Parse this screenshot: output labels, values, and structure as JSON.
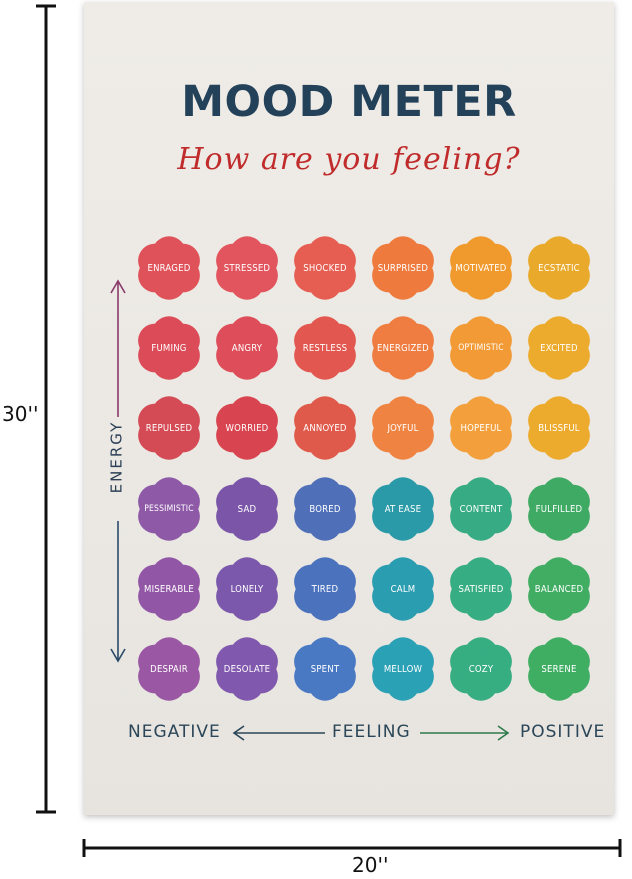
{
  "poster": {
    "title": "MOOD METER",
    "subtitle": "How are you feeling?"
  },
  "axes": {
    "energy_label": "ENERGY",
    "negative_label": "NEGATIVE",
    "feeling_label": "FEELING",
    "positive_label": "POSITIVE"
  },
  "dimensions": {
    "height_label": "30''",
    "width_label": "20''"
  },
  "grid": {
    "rows": [
      {
        "words": [
          "ENRAGED",
          "STRESSED",
          "SHOCKED",
          "SURPRISED",
          "MOTIVATED",
          "ECSTATIC"
        ],
        "colors": [
          "#e0525a",
          "#e2555e",
          "#e65e52",
          "#ee7a3e",
          "#f09a2e",
          "#e9a92a"
        ]
      },
      {
        "words": [
          "FUMING",
          "ANGRY",
          "RESTLESS",
          "ENERGIZED",
          "OPTIMISTIC",
          "EXCITED"
        ],
        "colors": [
          "#dc4c58",
          "#de4e5a",
          "#e2574f",
          "#ef7c40",
          "#f29a35",
          "#ecab2c"
        ]
      },
      {
        "words": [
          "REPULSED",
          "WORRIED",
          "ANNOYED",
          "JOYFUL",
          "HOPEFUL",
          "BLISSFUL"
        ],
        "colors": [
          "#d44a55",
          "#d8444f",
          "#e05a4c",
          "#ef8442",
          "#f3a03c",
          "#edab2e"
        ]
      },
      {
        "words": [
          "PESSIMISTIC",
          "SAD",
          "BORED",
          "AT EASE",
          "CONTENT",
          "FULFILLED"
        ],
        "colors": [
          "#8e5aa8",
          "#7a55a8",
          "#4f6fb8",
          "#2a9aa8",
          "#36ab84",
          "#3faa63"
        ]
      },
      {
        "words": [
          "MISERABLE",
          "LONELY",
          "TIRED",
          "CALM",
          "SATISFIED",
          "BALANCED"
        ],
        "colors": [
          "#9256a6",
          "#7b58ab",
          "#4b72bd",
          "#2a9db1",
          "#37ad84",
          "#41ad63"
        ]
      },
      {
        "words": [
          "DESPAIR",
          "DESOLATE",
          "SPENT",
          "MELLOW",
          "COZY",
          "SERENE"
        ],
        "colors": [
          "#9a57a3",
          "#8058ad",
          "#4a79c4",
          "#2ba1b5",
          "#37ad82",
          "#3fae63"
        ]
      }
    ]
  },
  "colors": {
    "title": "#23425a",
    "subtitle": "#c02b2b",
    "energy_arrow_top": "#8a3a6a",
    "energy_arrow_bottom": "#2b4a6a",
    "left_arrow": "#2b4658",
    "right_arrow": "#2f7a4a"
  }
}
